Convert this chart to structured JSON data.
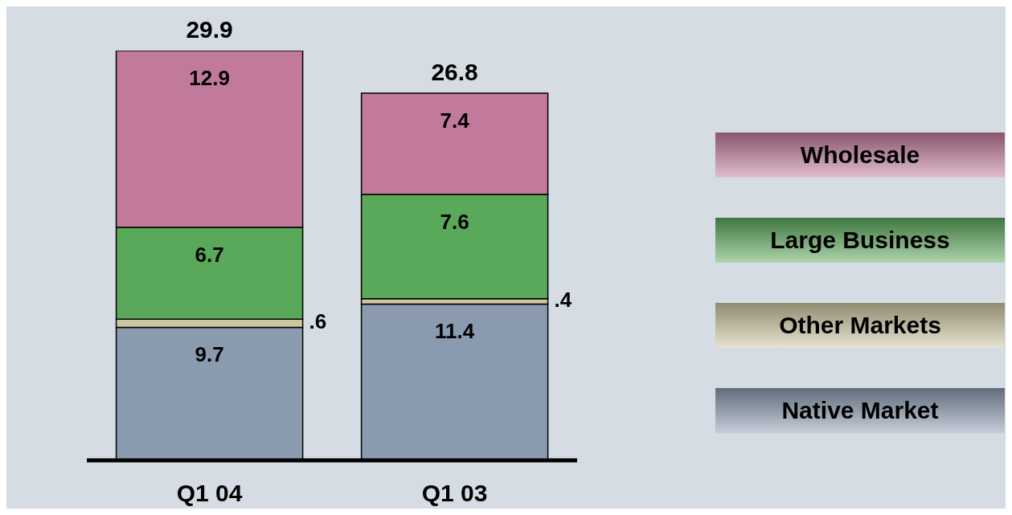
{
  "chart_data": {
    "type": "bar",
    "stacked": true,
    "categories": [
      "Q1 04",
      "Q1 03"
    ],
    "series": [
      {
        "name": "Native Market",
        "color": "#8a9bb0",
        "values": [
          9.7,
          11.4
        ],
        "value_labels": [
          "9.7",
          "11.4"
        ]
      },
      {
        "name": "Other Markets",
        "color": "#cdc6a0",
        "values": [
          0.6,
          0.4
        ],
        "value_labels": [
          ".6",
          ".4"
        ]
      },
      {
        "name": "Large Business",
        "color": "#5aa85a",
        "values": [
          6.7,
          7.6
        ],
        "value_labels": [
          "6.7",
          "7.6"
        ]
      },
      {
        "name": "Wholesale",
        "color": "#c27a9c",
        "values": [
          12.9,
          7.4
        ],
        "value_labels": [
          "12.9",
          "7.4"
        ]
      }
    ],
    "totals": [
      "29.9",
      "26.8"
    ],
    "legend": "right"
  }
}
